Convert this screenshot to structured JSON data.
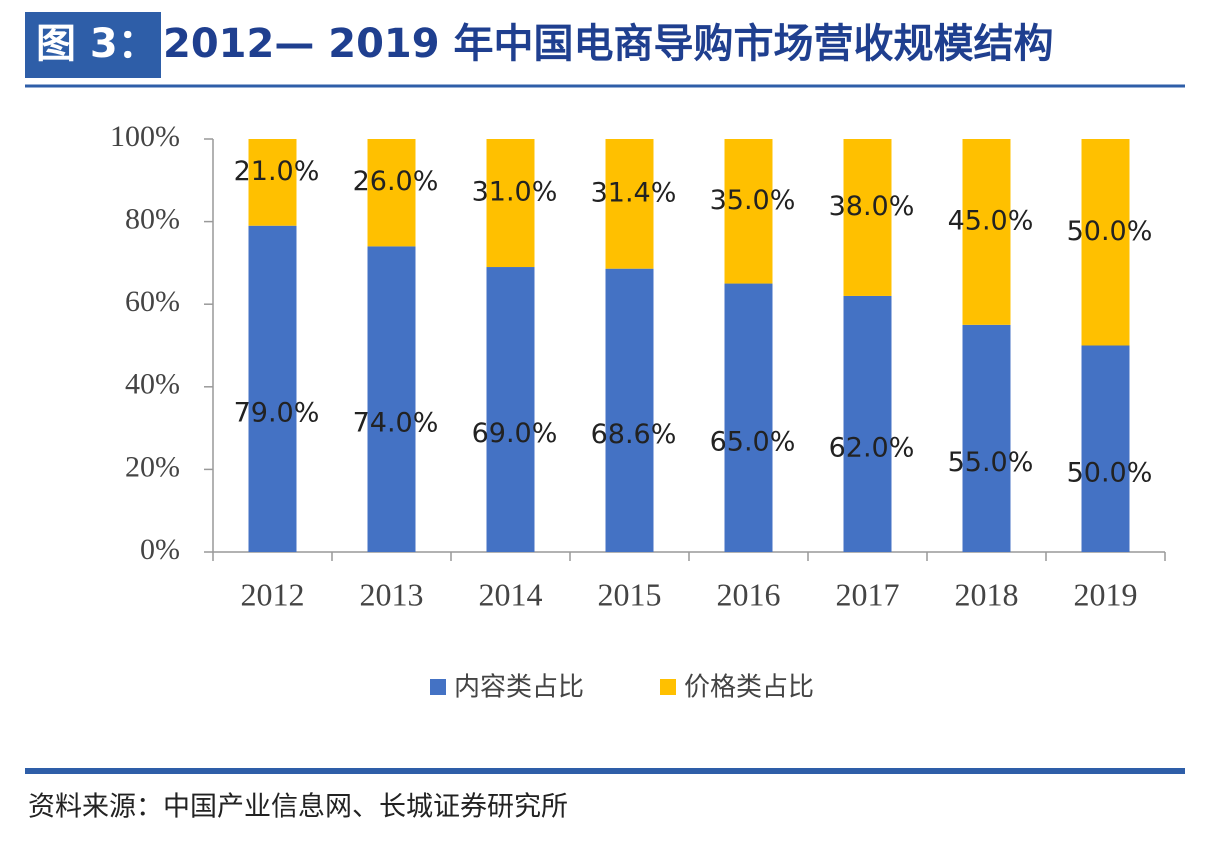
{
  "chart_data": {
    "type": "stacked-bar",
    "figure_label": "图 3：",
    "title": "2012— 2019 年中国电商导购市场营收规模结构",
    "categories": [
      "2012",
      "2013",
      "2014",
      "2015",
      "2016",
      "2017",
      "2018",
      "2019"
    ],
    "series": [
      {
        "name": "内容类占比",
        "color": "#4472c4",
        "values": [
          79,
          74,
          69,
          68.6,
          65,
          62,
          55,
          50
        ],
        "value_labels": [
          "79.0%",
          "74.0%",
          "69.0%",
          "68.6%",
          "65.0%",
          "62.0%",
          "55.0%",
          "50.0%"
        ]
      },
      {
        "name": "价格类占比",
        "color": "#ffc000",
        "values": [
          21,
          26,
          31,
          31.4,
          35,
          38,
          45,
          50
        ],
        "value_labels": [
          "21.0%",
          "26.0%",
          "31.0%",
          "31.4%",
          "35.0%",
          "38.0%",
          "45.0%",
          "50.0%"
        ]
      }
    ],
    "ylim": [
      0,
      100
    ],
    "yticks": [
      {
        "value": 0,
        "label": "0%"
      },
      {
        "value": 20,
        "label": "20%"
      },
      {
        "value": 40,
        "label": "40%"
      },
      {
        "value": 60,
        "label": "60%"
      },
      {
        "value": 80,
        "label": "80%"
      },
      {
        "value": 100,
        "label": "100%"
      }
    ],
    "legend": "bottom",
    "source": "资料来源：中国产业信息网、长城证券研究所"
  }
}
